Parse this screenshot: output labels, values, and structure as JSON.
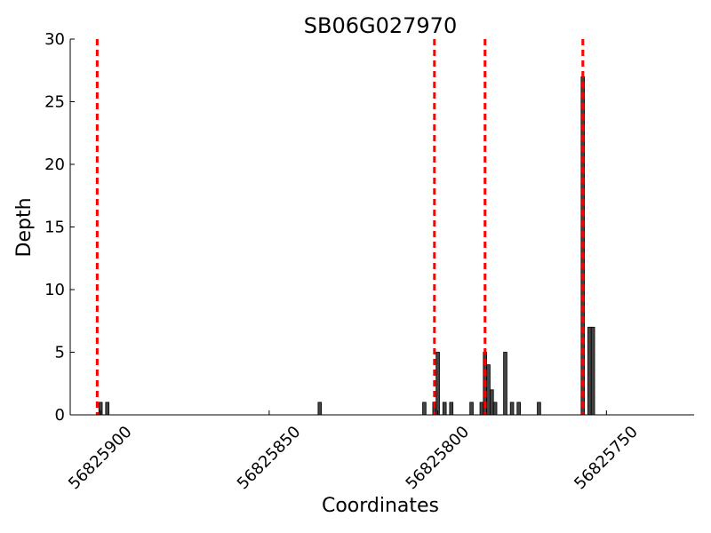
{
  "chart_data": {
    "type": "bar",
    "title": "SB06G027970",
    "xlabel": "Coordinates",
    "ylabel": "Depth",
    "xlim": [
      56825909,
      56825724
    ],
    "x_reversed": true,
    "ylim": [
      0,
      30
    ],
    "yticks": [
      0,
      5,
      10,
      15,
      20,
      25,
      30
    ],
    "xticks": [
      56825900,
      56825850,
      56825800,
      56825750
    ],
    "bar_color": "#444444",
    "marker_color": "#ff0000",
    "bars": [
      {
        "x": 56825900,
        "y": 1
      },
      {
        "x": 56825898,
        "y": 1
      },
      {
        "x": 56825835,
        "y": 1
      },
      {
        "x": 56825804,
        "y": 1
      },
      {
        "x": 56825801,
        "y": 1
      },
      {
        "x": 56825800,
        "y": 5
      },
      {
        "x": 56825798,
        "y": 1
      },
      {
        "x": 56825796,
        "y": 1
      },
      {
        "x": 56825790,
        "y": 1
      },
      {
        "x": 56825787,
        "y": 1
      },
      {
        "x": 56825786,
        "y": 5
      },
      {
        "x": 56825785,
        "y": 4
      },
      {
        "x": 56825784,
        "y": 2
      },
      {
        "x": 56825783,
        "y": 1
      },
      {
        "x": 56825780,
        "y": 5
      },
      {
        "x": 56825778,
        "y": 1
      },
      {
        "x": 56825776,
        "y": 1
      },
      {
        "x": 56825770,
        "y": 1
      },
      {
        "x": 56825757,
        "y": 27
      },
      {
        "x": 56825755,
        "y": 7
      },
      {
        "x": 56825754,
        "y": 7
      }
    ],
    "markers": [
      56825901,
      56825801,
      56825786,
      56825757
    ]
  }
}
